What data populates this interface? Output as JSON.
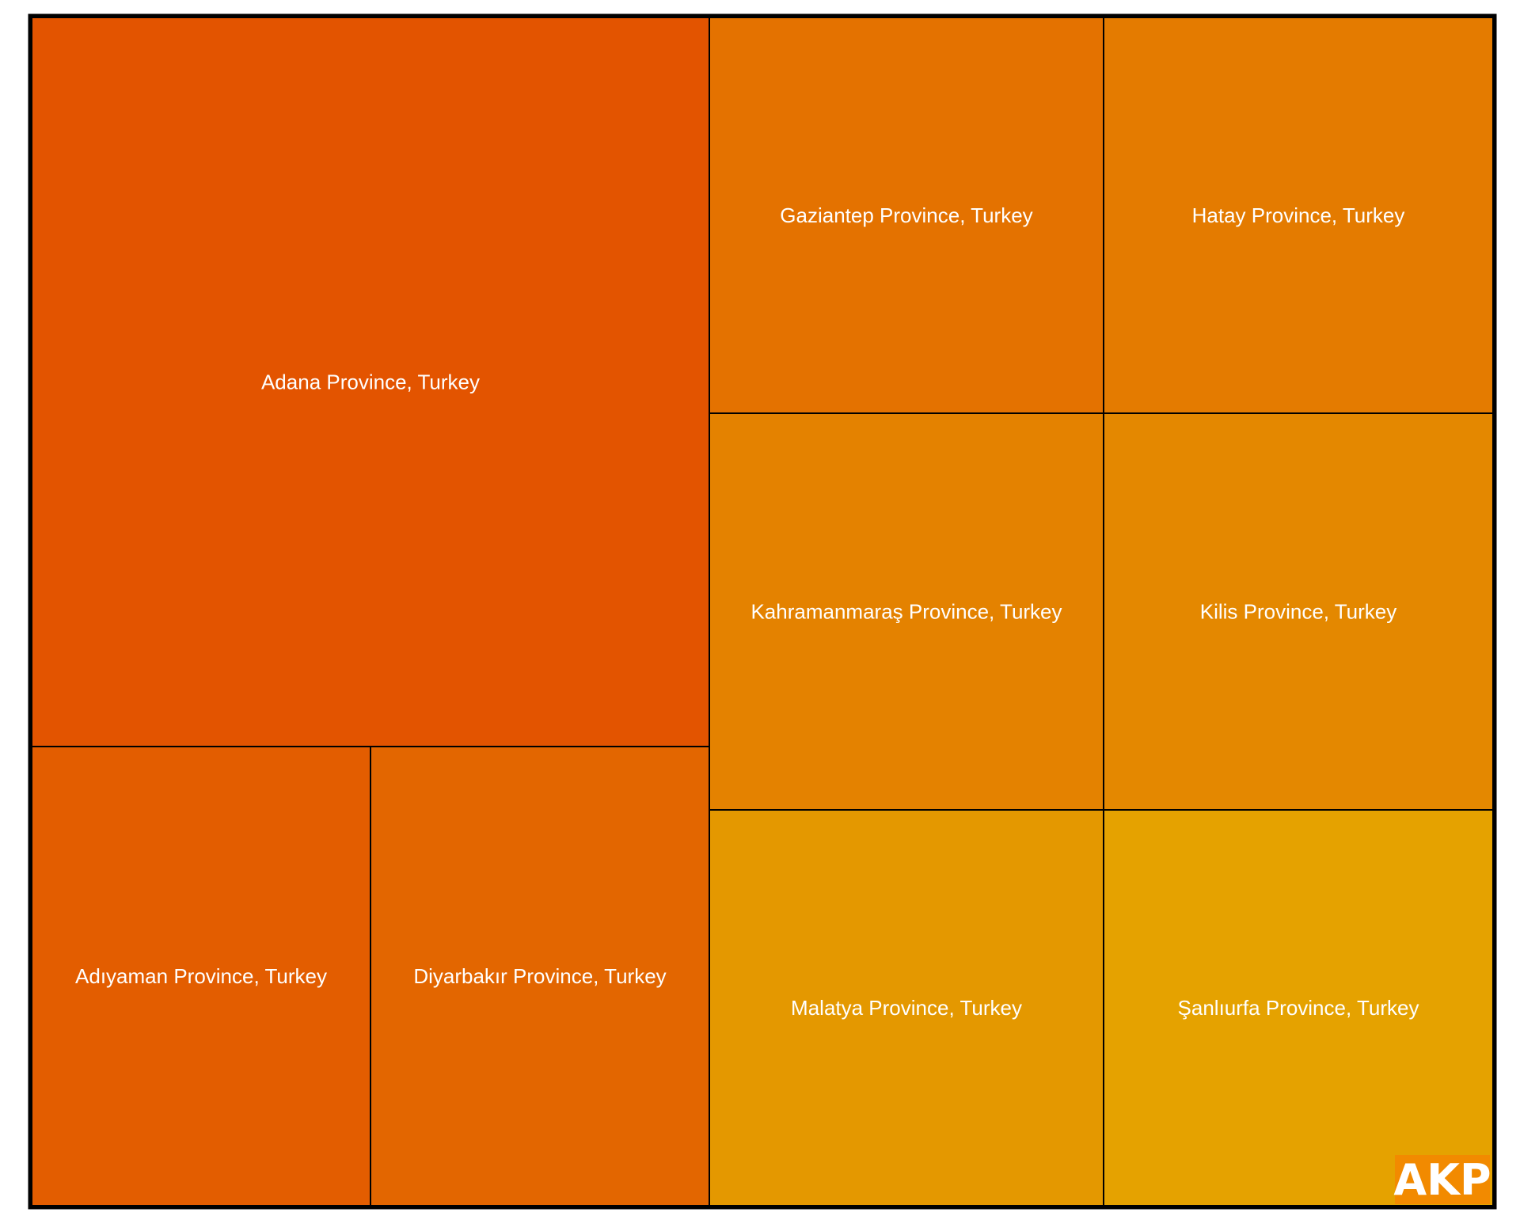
{
  "chart_data": {
    "type": "treemap",
    "items": [
      {
        "label": "Adana Province, Turkey",
        "color": "#E35400"
      },
      {
        "label": "Adıyaman Province, Turkey",
        "color": "#E35D00"
      },
      {
        "label": "Diyarbakır Province, Turkey",
        "color": "#E36600"
      },
      {
        "label": "Gaziantep Province, Turkey",
        "color": "#E47200"
      },
      {
        "label": "Hatay Province, Turkey",
        "color": "#E47B00"
      },
      {
        "label": "Kahramanmaraş Province, Turkey",
        "color": "#E48200"
      },
      {
        "label": "Kilis Province, Turkey",
        "color": "#E48800"
      },
      {
        "label": "Malatya Province, Turkey",
        "color": "#E49800"
      },
      {
        "label": "Şanlıurfa Province, Turkey",
        "color": "#E5A200"
      }
    ],
    "border_color": "#000000"
  },
  "logo": {
    "text": "AKP",
    "background": "#F28A00"
  }
}
